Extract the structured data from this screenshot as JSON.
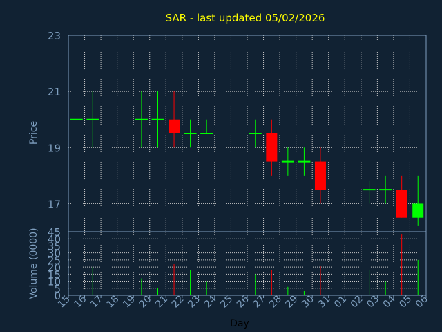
{
  "chart_data": {
    "type": "candlestick",
    "title": "SAR - last updated 05/02/2026",
    "xlabel": "Day",
    "ylabel": "Price",
    "volume_label": "Volume (0000)",
    "price_ylim": [
      16,
      23
    ],
    "price_ticks": [
      17,
      19,
      21,
      23
    ],
    "volume_ylim": [
      0,
      45
    ],
    "volume_ticks": [
      0,
      5,
      10,
      15,
      20,
      25,
      30,
      35,
      40,
      45
    ],
    "grid": true,
    "colors": {
      "background": "#112233",
      "title": "#ffff00",
      "axis_text": "#7f9fbf",
      "frame": "#7f9fbf",
      "grid": "#c8c8c8",
      "up": "#00ff00",
      "down": "#ff0000"
    },
    "x_labels": [
      "15",
      "16",
      "17",
      "18",
      "19",
      "20",
      "21",
      "22",
      "23",
      "24",
      "25",
      "26",
      "27",
      "28",
      "29",
      "30",
      "31",
      "01",
      "02",
      "03",
      "04",
      "05",
      "06"
    ],
    "candles": [
      {
        "day": "15",
        "open": 20.0,
        "high": 20.0,
        "low": 20.0,
        "close": 20.0,
        "volume": 0
      },
      {
        "day": "16",
        "open": 20.0,
        "high": 21.0,
        "low": 19.0,
        "close": 20.0,
        "volume": 20
      },
      {
        "day": "19",
        "open": 20.0,
        "high": 21.0,
        "low": 19.0,
        "close": 20.0,
        "volume": 12
      },
      {
        "day": "20",
        "open": 20.0,
        "high": 21.0,
        "low": 19.0,
        "close": 20.0,
        "volume": 5
      },
      {
        "day": "21",
        "open": 20.0,
        "high": 21.0,
        "low": 19.0,
        "close": 19.5,
        "volume": 22
      },
      {
        "day": "22",
        "open": 19.5,
        "high": 20.0,
        "low": 19.0,
        "close": 19.5,
        "volume": 18
      },
      {
        "day": "23",
        "open": 19.5,
        "high": 20.0,
        "low": 19.5,
        "close": 19.5,
        "volume": 10
      },
      {
        "day": "26",
        "open": 19.5,
        "high": 20.0,
        "low": 19.0,
        "close": 19.5,
        "volume": 15
      },
      {
        "day": "27",
        "open": 19.5,
        "high": 20.0,
        "low": 18.0,
        "close": 18.5,
        "volume": 18
      },
      {
        "day": "28",
        "open": 18.5,
        "high": 19.0,
        "low": 18.0,
        "close": 18.5,
        "volume": 6
      },
      {
        "day": "29",
        "open": 18.5,
        "high": 19.0,
        "low": 18.0,
        "close": 18.5,
        "volume": 3
      },
      {
        "day": "30",
        "open": 18.5,
        "high": 19.0,
        "low": 17.0,
        "close": 17.5,
        "volume": 21
      },
      {
        "day": "02",
        "open": 17.5,
        "high": 17.8,
        "low": 17.0,
        "close": 17.5,
        "volume": 18
      },
      {
        "day": "03",
        "open": 17.5,
        "high": 18.0,
        "low": 17.0,
        "close": 17.5,
        "volume": 10
      },
      {
        "day": "04",
        "open": 17.5,
        "high": 18.0,
        "low": 16.5,
        "close": 16.5,
        "volume": 43
      },
      {
        "day": "05",
        "open": 16.5,
        "high": 18.0,
        "low": 16.2,
        "close": 17.0,
        "volume": 25
      }
    ]
  }
}
